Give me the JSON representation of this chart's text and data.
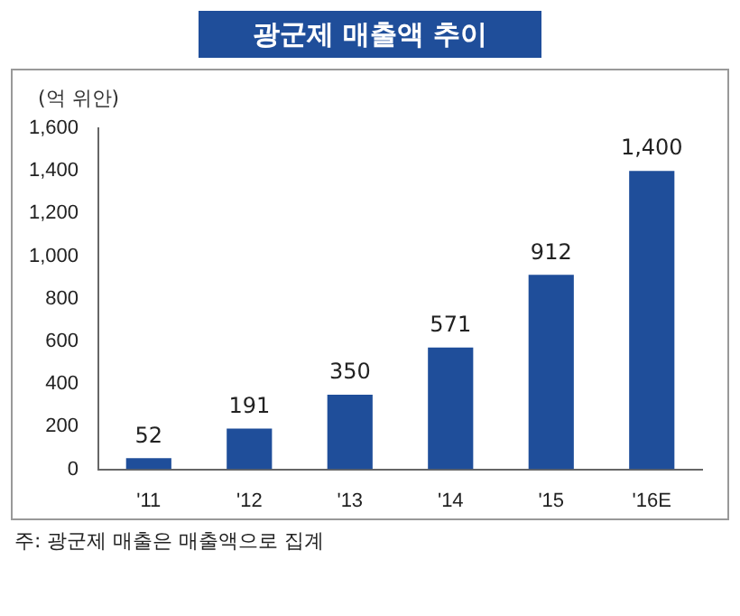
{
  "chart_data": {
    "type": "bar",
    "title": "광군제 매출액 추이",
    "ylabel": "(억 위안)",
    "categories": [
      "'11",
      "'12",
      "'13",
      "'14",
      "'15",
      "'16E"
    ],
    "values": [
      52,
      191,
      350,
      571,
      912,
      1400
    ],
    "color": "#1f4e9a",
    "ylim": [
      0,
      1600
    ],
    "yticks": [
      0,
      200,
      400,
      600,
      800,
      {
        "value": 1000,
        "label": "1,000"
      },
      {
        "value": 1200,
        "label": "1,200"
      },
      {
        "value": 1400,
        "label": "1,400"
      },
      {
        "value": 1600,
        "label": "1,600"
      }
    ],
    "value_labels": [
      "52",
      "191",
      "350",
      "571",
      "912",
      "1,400"
    ],
    "grid": false,
    "legend": false,
    "annotations": [
      "주: 광군제 매출은 매출액으로 집계"
    ]
  }
}
